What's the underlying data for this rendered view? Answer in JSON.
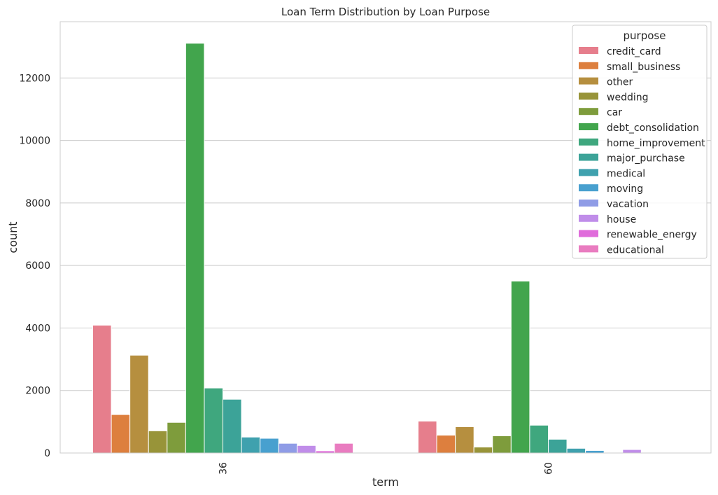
{
  "chart_data": {
    "type": "bar",
    "title": "Loan Term Distribution by Loan Purpose",
    "xlabel": "term",
    "ylabel": "count",
    "categories": [
      "36",
      "60"
    ],
    "ylim": [
      0,
      13800
    ],
    "yticks": [
      0,
      2000,
      4000,
      6000,
      8000,
      10000,
      12000
    ],
    "grid": true,
    "legend_title": "purpose",
    "legend_position": "top-right",
    "series": [
      {
        "name": "credit_card",
        "color": "#e67e8c",
        "values": [
          4090,
          1020
        ]
      },
      {
        "name": "small_business",
        "color": "#dd7f3e",
        "values": [
          1230,
          570
        ]
      },
      {
        "name": "other",
        "color": "#b68f3f",
        "values": [
          3130,
          840
        ]
      },
      {
        "name": "wedding",
        "color": "#989439",
        "values": [
          710,
          190
        ]
      },
      {
        "name": "car",
        "color": "#7e9c3c",
        "values": [
          980,
          550
        ]
      },
      {
        "name": "debt_consolidation",
        "color": "#42a54d",
        "values": [
          13110,
          5500
        ]
      },
      {
        "name": "home_improvement",
        "color": "#3fa77e",
        "values": [
          2080,
          890
        ]
      },
      {
        "name": "major_purchase",
        "color": "#3ca398",
        "values": [
          1720,
          440
        ]
      },
      {
        "name": "medical",
        "color": "#3fa1ae",
        "values": [
          510,
          150
        ]
      },
      {
        "name": "moving",
        "color": "#48a0cf",
        "values": [
          470,
          80
        ]
      },
      {
        "name": "vacation",
        "color": "#8f9ce6",
        "values": [
          310,
          20
        ]
      },
      {
        "name": "house",
        "color": "#c08de9",
        "values": [
          240,
          110
        ]
      },
      {
        "name": "renewable_energy",
        "color": "#e06cdb",
        "values": [
          70,
          20
        ]
      },
      {
        "name": "educational",
        "color": "#e97cc0",
        "values": [
          310,
          0
        ]
      }
    ]
  }
}
